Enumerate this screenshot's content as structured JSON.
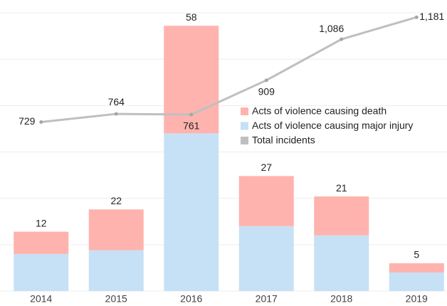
{
  "chart_data": {
    "type": "bar",
    "categories": [
      "2014",
      "2015",
      "2016",
      "2017",
      "2018",
      "2019"
    ],
    "series": [
      {
        "name": "Acts of violence causing major injury",
        "color": "#c6e1f5",
        "values": [
          20,
          22,
          85,
          35,
          30,
          10
        ]
      },
      {
        "name": "Acts of violence causing death",
        "color": "#ffb3ae",
        "values": [
          12,
          22,
          58,
          27,
          21,
          5
        ]
      },
      {
        "name": "Total incidents",
        "color": "#bfbfbf",
        "type": "line",
        "axis": "y2",
        "values": [
          729,
          764,
          761,
          909,
          1086,
          1181
        ],
        "value_labels": [
          "729",
          "764",
          "761",
          "909",
          "1,086",
          "1,181"
        ]
      }
    ],
    "stacked": true,
    "ylim": [
      0,
      150
    ],
    "yticks": [
      0,
      25,
      50,
      75,
      100,
      125,
      150
    ],
    "y2lim": [
      0,
      1200
    ],
    "grid": true,
    "legend": "center"
  }
}
